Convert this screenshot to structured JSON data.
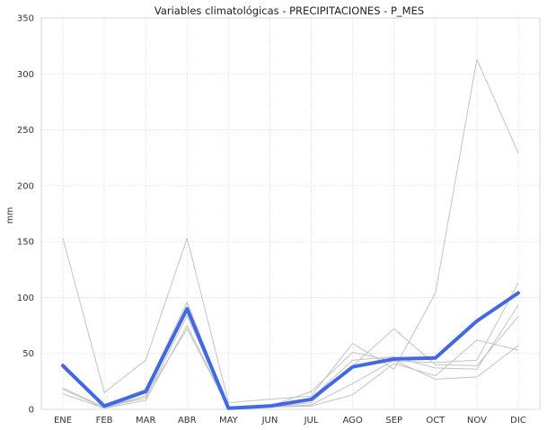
{
  "chart_data": {
    "type": "line",
    "title": "Variables climatológicas - PRECIPITACIONES - P_MES",
    "xlabel": "",
    "ylabel": "mm",
    "ylim": [
      0,
      350
    ],
    "yticks": [
      "0",
      "50",
      "100",
      "150",
      "200",
      "250",
      "300",
      "350"
    ],
    "grid": true,
    "legend": "none",
    "categories": [
      "ENE",
      "FEB",
      "MAR",
      "ABR",
      "MAY",
      "JUN",
      "JUL",
      "AGO",
      "SEP",
      "OCT",
      "NOV",
      "DIC"
    ],
    "series": [
      {
        "values": [
          153,
          15,
          44,
          153,
          6,
          9,
          12,
          59,
          36,
          104,
          313,
          229
        ],
        "color": "#c3c3c3",
        "highlight": false
      },
      {
        "values": [
          41,
          4,
          18,
          96,
          2,
          3,
          16,
          51,
          43,
          42,
          44,
          113
        ],
        "color": "#c3c3c3",
        "highlight": false
      },
      {
        "values": [
          38,
          2,
          12,
          90,
          1,
          3,
          10,
          44,
          47,
          37,
          36,
          93
        ],
        "color": "#c3c3c3",
        "highlight": false
      },
      {
        "values": [
          18,
          1,
          8,
          75,
          1,
          2,
          6,
          39,
          72,
          40,
          39,
          83
        ],
        "color": "#c3c3c3",
        "highlight": false
      },
      {
        "values": [
          14,
          1,
          12,
          72,
          1,
          2,
          4,
          23,
          44,
          27,
          29,
          57
        ],
        "color": "#c3c3c3",
        "highlight": false
      },
      {
        "values": [
          19,
          2,
          10,
          84,
          1,
          2,
          3,
          13,
          41,
          30,
          62,
          53
        ],
        "color": "#c3c3c3",
        "highlight": false
      },
      {
        "values": [
          39,
          3,
          16,
          90,
          1,
          3,
          9,
          38,
          45,
          46,
          79,
          104
        ],
        "color": "#4169e1",
        "highlight": true
      }
    ]
  }
}
